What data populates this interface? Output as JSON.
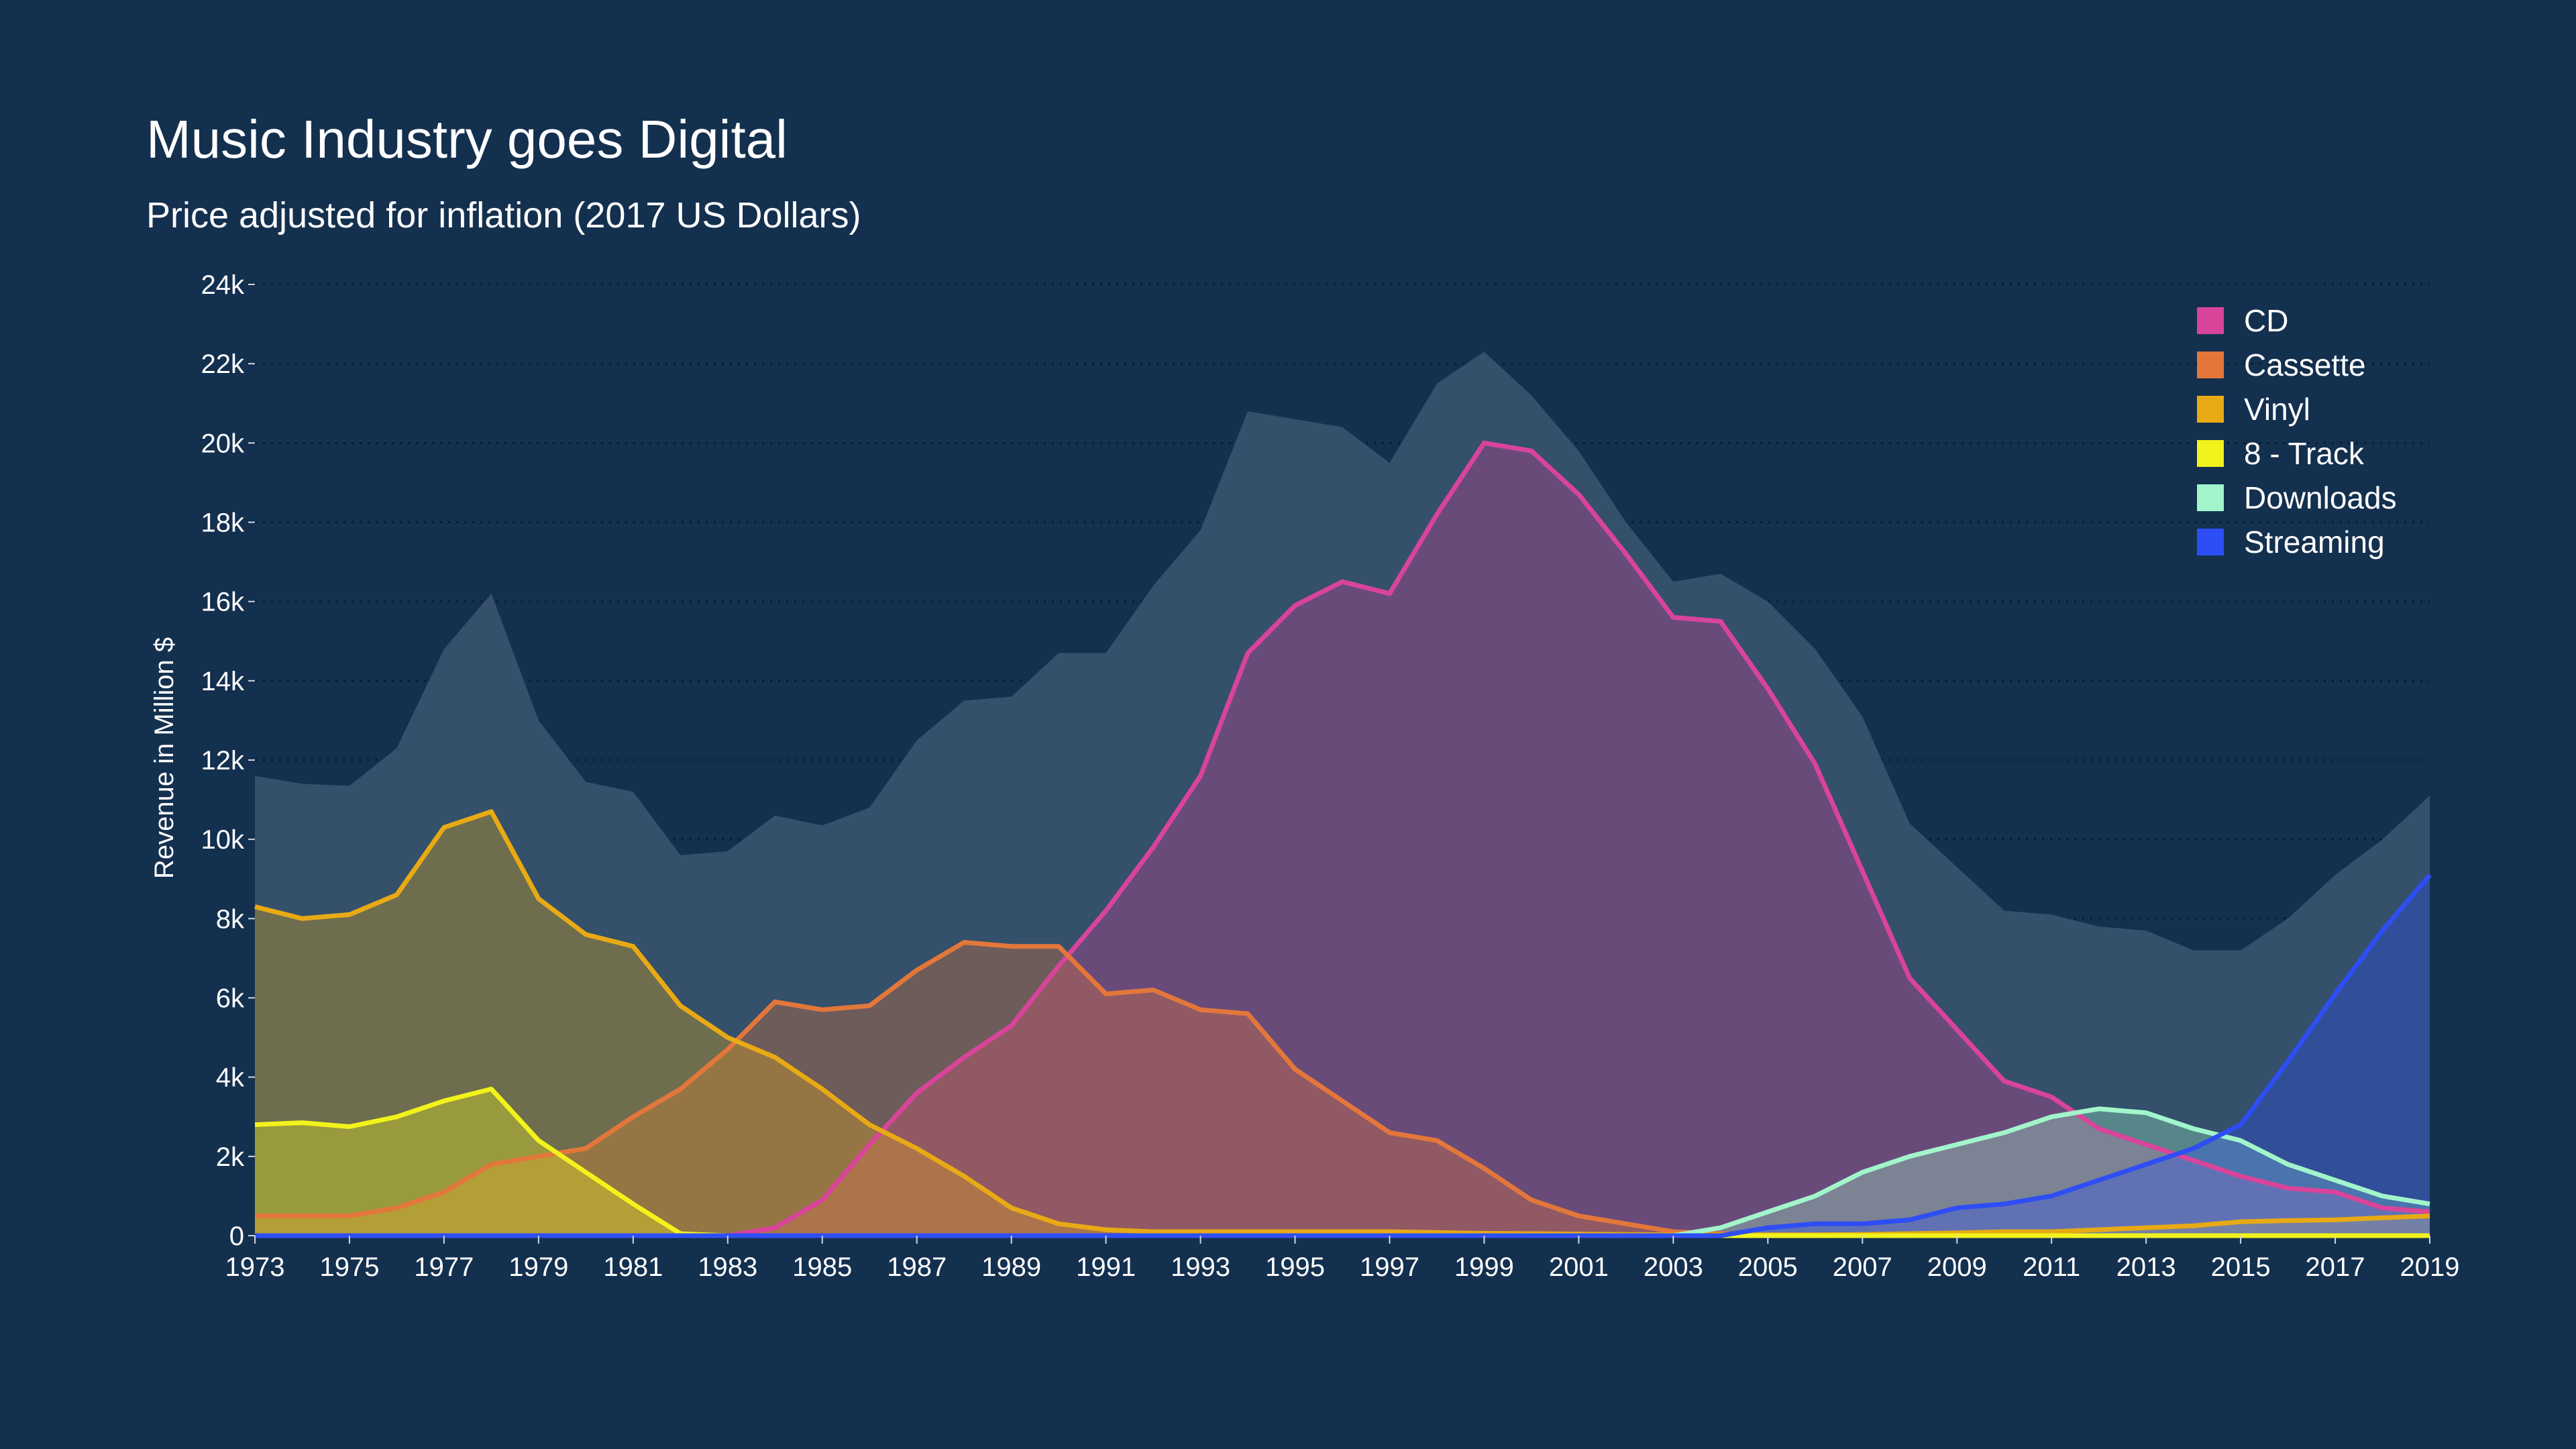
{
  "chart_data": {
    "type": "area",
    "title": "Music Industry goes Digital",
    "subtitle": "Price adjusted for inflation (2017 US Dollars)",
    "xlabel": "",
    "ylabel": "Revenue in Million $",
    "ylim": [
      0,
      24000
    ],
    "yticks": [
      "0",
      "2k",
      "4k",
      "6k",
      "8k",
      "10k",
      "12k",
      "14k",
      "16k",
      "18k",
      "20k",
      "22k",
      "24k"
    ],
    "xticks": [
      "1973",
      "1975",
      "1977",
      "1979",
      "1981",
      "1983",
      "1985",
      "1987",
      "1989",
      "1991",
      "1993",
      "1995",
      "1997",
      "1999",
      "2001",
      "2003",
      "2005",
      "2007",
      "2009",
      "2011",
      "2013",
      "2015",
      "2017",
      "2019"
    ],
    "grid": "horizontal dotted",
    "legend_position": "top-right",
    "x": [
      1973,
      1974,
      1975,
      1976,
      1977,
      1978,
      1979,
      1980,
      1981,
      1982,
      1983,
      1984,
      1985,
      1986,
      1987,
      1988,
      1989,
      1990,
      1991,
      1992,
      1993,
      1994,
      1995,
      1996,
      1997,
      1998,
      1999,
      2000,
      2001,
      2002,
      2003,
      2004,
      2005,
      2006,
      2007,
      2008,
      2009,
      2010,
      2011,
      2012,
      2013,
      2014,
      2015,
      2016,
      2017,
      2018,
      2019
    ],
    "total": {
      "color": "#34506a",
      "values": [
        11600,
        11400,
        11350,
        12300,
        14800,
        16200,
        13000,
        11450,
        11200,
        9600,
        9700,
        10600,
        10350,
        10800,
        12500,
        13500,
        13600,
        14700,
        14700,
        16400,
        17800,
        20800,
        20600,
        20400,
        19500,
        21500,
        22300,
        21200,
        19800,
        18000,
        16500,
        16700,
        16000,
        14800,
        13100,
        10400,
        9300,
        8200,
        8100,
        7800,
        7700,
        7200,
        7200,
        8000,
        9100,
        10000,
        11100
      ]
    },
    "series": [
      {
        "name": "CD",
        "color": "#d9449b",
        "values": [
          0,
          0,
          0,
          0,
          0,
          0,
          0,
          0,
          0,
          0,
          0,
          200,
          900,
          2300,
          3600,
          4500,
          5300,
          6800,
          8200,
          9800,
          11600,
          14700,
          15900,
          16500,
          16200,
          18200,
          20000,
          19800,
          18700,
          17200,
          15600,
          15500,
          13800,
          11900,
          9200,
          6500,
          5200,
          3900,
          3500,
          2700,
          2300,
          1900,
          1500,
          1200,
          1100,
          700,
          600
        ]
      },
      {
        "name": "Cassette",
        "color": "#e3773b",
        "values": [
          500,
          500,
          500,
          700,
          1100,
          1800,
          2000,
          2200,
          3000,
          3700,
          4700,
          5900,
          5700,
          5800,
          6700,
          7400,
          7300,
          7300,
          6100,
          6200,
          5700,
          5600,
          4200,
          3400,
          2600,
          2400,
          1700,
          900,
          500,
          300,
          100,
          50,
          0,
          0,
          0,
          0,
          0,
          0,
          0,
          0,
          0,
          0,
          0,
          0,
          0,
          0,
          0
        ]
      },
      {
        "name": "Vinyl",
        "color": "#e8aa14",
        "values": [
          8300,
          8000,
          8100,
          8600,
          10300,
          10700,
          8500,
          7600,
          7300,
          5800,
          5000,
          4500,
          3700,
          2800,
          2200,
          1500,
          700,
          300,
          150,
          100,
          100,
          100,
          100,
          100,
          100,
          80,
          60,
          50,
          40,
          30,
          20,
          20,
          20,
          20,
          30,
          50,
          70,
          100,
          100,
          150,
          200,
          250,
          350,
          380,
          400,
          450,
          500
        ]
      },
      {
        "name": "8 - Track",
        "color": "#f2f21c",
        "values": [
          2800,
          2850,
          2750,
          3000,
          3400,
          3700,
          2400,
          1600,
          800,
          50,
          0,
          0,
          0,
          0,
          0,
          0,
          0,
          0,
          0,
          0,
          0,
          0,
          0,
          0,
          0,
          0,
          0,
          0,
          0,
          0,
          0,
          0,
          0,
          0,
          0,
          0,
          0,
          0,
          0,
          0,
          0,
          0,
          0,
          0,
          0,
          0,
          0
        ]
      },
      {
        "name": "Downloads",
        "color": "#a2f5cb",
        "values": [
          0,
          0,
          0,
          0,
          0,
          0,
          0,
          0,
          0,
          0,
          0,
          0,
          0,
          0,
          0,
          0,
          0,
          0,
          0,
          0,
          0,
          0,
          0,
          0,
          0,
          0,
          0,
          0,
          0,
          0,
          0,
          200,
          600,
          1000,
          1600,
          2000,
          2300,
          2600,
          3000,
          3200,
          3100,
          2700,
          2400,
          1800,
          1400,
          1000,
          800
        ]
      },
      {
        "name": "Streaming",
        "color": "#2e4ef5",
        "values": [
          0,
          0,
          0,
          0,
          0,
          0,
          0,
          0,
          0,
          0,
          0,
          0,
          0,
          0,
          0,
          0,
          0,
          0,
          0,
          0,
          0,
          0,
          0,
          0,
          0,
          0,
          0,
          0,
          0,
          0,
          0,
          0,
          200,
          300,
          300,
          400,
          700,
          800,
          1000,
          1400,
          1800,
          2200,
          2800,
          4400,
          6100,
          7700,
          9100
        ]
      }
    ]
  }
}
